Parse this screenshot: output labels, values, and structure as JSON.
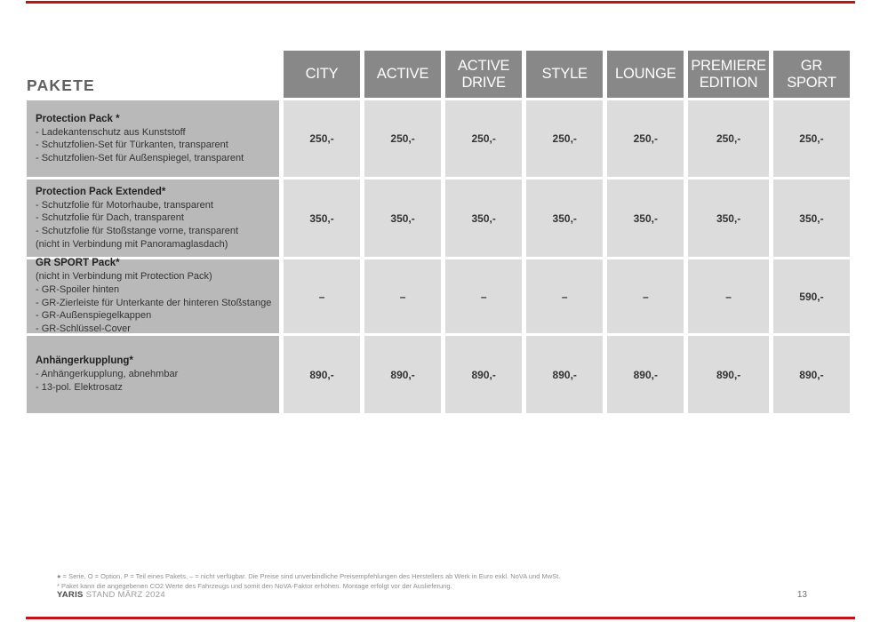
{
  "page": {
    "title": "PAKETE",
    "accent_color": "#c11218",
    "header_bg": "#888888",
    "label_bg": "#b9b9b9",
    "cell_bg": "#dcdcdc"
  },
  "table": {
    "columns": [
      "CITY",
      "ACTIVE",
      "ACTIVE DRIVE",
      "STYLE",
      "LOUNGE",
      "PREMIERE EDITION",
      "GR SPORT"
    ],
    "rows": [
      {
        "name": "Protection Pack *",
        "details": [
          "- Ladekantenschutz aus Kunststoff",
          "- Schutzfolien-Set für Türkanten, transparent",
          "- Schutzfolien-Set für Außenspiegel, transparent"
        ],
        "values": [
          "250,-",
          "250,-",
          "250,-",
          "250,-",
          "250,-",
          "250,-",
          "250,-"
        ]
      },
      {
        "name": "Protection Pack Extended*",
        "details": [
          "- Schutzfolie für Motorhaube, transparent",
          "- Schutzfolie für Dach, transparent",
          "- Schutzfolie für Stoßstange vorne, transparent",
          "(nicht in Verbindung mit Panoramaglasdach)"
        ],
        "values": [
          "350,-",
          "350,-",
          "350,-",
          "350,-",
          "350,-",
          "350,-",
          "350,-"
        ]
      },
      {
        "name": "GR SPORT Pack*",
        "details": [
          "(nicht in Verbindung mit Protection Pack)",
          "- GR-Spoiler hinten",
          "- GR-Zierleiste für Unterkante der hinteren Stoßstange",
          "- GR-Außenspiegelkappen",
          "- GR-Schlüssel-Cover"
        ],
        "values": [
          "–",
          "–",
          "–",
          "–",
          "–",
          "–",
          "590,-"
        ]
      },
      {
        "name": "Anhängerkupplung*",
        "details": [
          "- Anhängerkupplung, abnehmbar",
          "- 13-pol. Elektrosatz"
        ],
        "values": [
          "890,-",
          "890,-",
          "890,-",
          "890,-",
          "890,-",
          "890,-",
          "890,-"
        ]
      }
    ]
  },
  "footer": {
    "legal_line1": "● = Serie, O = Option, P = Teil eines Pakets, – = nicht verfügbar. Die Preise sind unverbindliche Preisempfehlungen des Herstellers ab Werk in Euro exkl. NoVA und MwSt.",
    "legal_line2": "* Paket kann die angegebenen CO2 Werte des Fahrzeugs und somit den NoVA-Faktor erhöhen. Montage erfolgt vor der Auslieferung.",
    "brand": "YARIS",
    "stand": " STAND MÄRZ 2024",
    "page_number": "13"
  }
}
